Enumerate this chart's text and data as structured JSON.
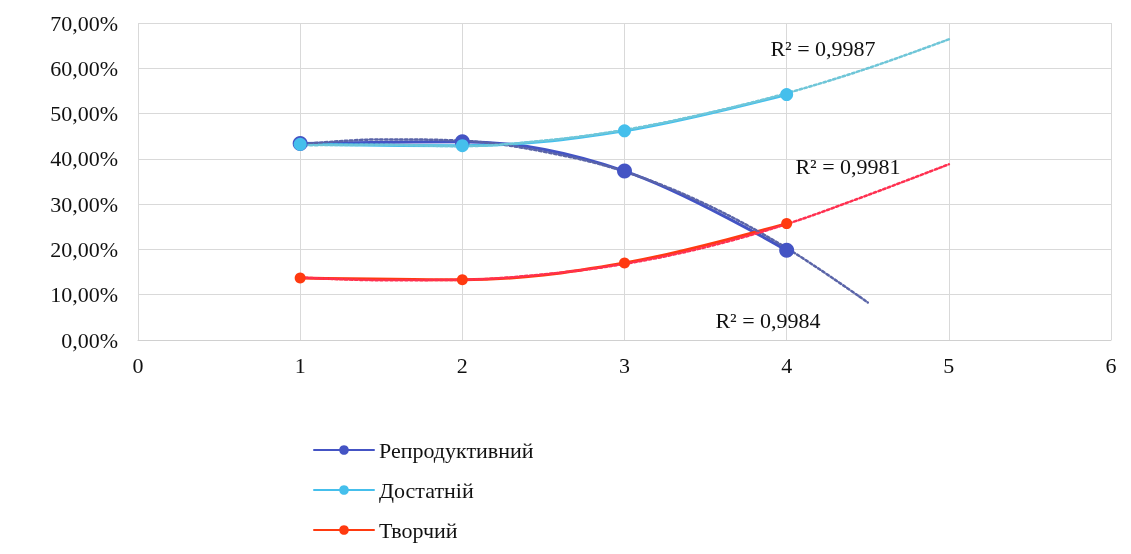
{
  "chart_data": {
    "type": "line",
    "xlim": [
      0,
      6
    ],
    "xticks": [
      0,
      1,
      2,
      3,
      4,
      5,
      6
    ],
    "ylim": [
      0,
      70
    ],
    "yticks": [
      {
        "value": 0,
        "label": "0,00%"
      },
      {
        "value": 10,
        "label": "10,00%"
      },
      {
        "value": 20,
        "label": "20,00%"
      },
      {
        "value": 30,
        "label": "30,00%"
      },
      {
        "value": 40,
        "label": "40,00%"
      },
      {
        "value": 50,
        "label": "50,00%"
      },
      {
        "value": 60,
        "label": "60,00%"
      },
      {
        "value": 70,
        "label": "70,00%"
      }
    ],
    "grid": true,
    "legend": "bottom",
    "marker": "circle",
    "line_style": "solid",
    "series": [
      {
        "name": "Репродуктивний",
        "color": "#4454c4",
        "x": [
          1,
          2,
          3,
          4
        ],
        "values": [
          43.4,
          43.8,
          37.3,
          19.8
        ]
      },
      {
        "name": "Достатній",
        "color": "#45bfec",
        "x": [
          1,
          2,
          3,
          4
        ],
        "values": [
          43.2,
          42.9,
          46.2,
          54.2
        ]
      },
      {
        "name": "Творчий",
        "color": "#ff3a10",
        "x": [
          1,
          2,
          3,
          4
        ],
        "values": [
          13.7,
          13.3,
          17.0,
          25.7
        ]
      },
      {
        "type": "line",
        "color": "#5a64a8",
        "line_style": "dotted",
        "marker": "none",
        "x": [
          1,
          1.5,
          2,
          2.5,
          3,
          3.5,
          4,
          4.5
        ],
        "values": [
          43.2,
          44.3,
          44.0,
          41.6,
          37.2,
          30.0,
          20.3,
          8.3
        ]
      },
      {
        "type": "line",
        "color": "#6fc6d8",
        "line_style": "dotted",
        "marker": "none",
        "x": [
          1,
          1.5,
          2,
          2.5,
          3,
          3.5,
          4,
          4.5,
          5
        ],
        "values": [
          43.0,
          43.1,
          42.8,
          44.0,
          46.4,
          50.0,
          54.5,
          60.0,
          66.4
        ]
      },
      {
        "type": "line",
        "color": "#ff3050",
        "line_style": "dotted",
        "marker": "none",
        "x": [
          1,
          1.5,
          2,
          2.5,
          3,
          3.5,
          4,
          4.5,
          5
        ],
        "values": [
          13.8,
          13.2,
          13.3,
          14.5,
          16.8,
          20.5,
          25.6,
          32.0,
          38.8
        ]
      }
    ],
    "annotations": [
      "R² = 0,9987",
      "R² = 0,9981",
      "R² = 0,9984"
    ]
  }
}
